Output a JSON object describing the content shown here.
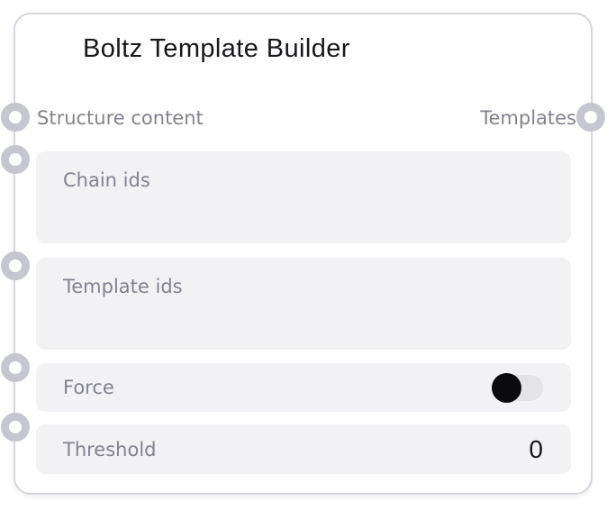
{
  "node": {
    "title": "Boltz Template Builder",
    "io": {
      "input_label": "Structure content",
      "output_label": "Templates"
    },
    "fields": [
      {
        "name": "chain-ids",
        "placeholder": "Chain ids",
        "value": ""
      },
      {
        "name": "template-ids",
        "placeholder": "Template ids",
        "value": ""
      }
    ],
    "force": {
      "label": "Force",
      "state": "off"
    },
    "threshold": {
      "label": "Threshold",
      "value": "0"
    },
    "ports": {
      "inputs": [
        "structure-content",
        "chain-ids",
        "template-ids",
        "force",
        "threshold"
      ],
      "outputs": [
        "templates"
      ]
    },
    "colors": {
      "field_bg": "#f2f2f4",
      "label_text": "#82828e",
      "title_text": "#17171c",
      "port_ring": "#c6c6ce",
      "card_border": "#d6d6de",
      "toggle_track": "#e3e3e8",
      "toggle_knob": "#0b0b0f"
    }
  }
}
